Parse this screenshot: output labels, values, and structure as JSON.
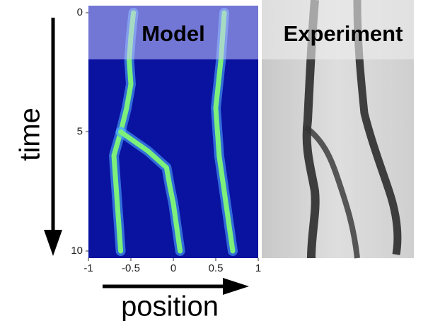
{
  "chart_data": {
    "type": "trajectory",
    "panel_labels": [
      "Model",
      "Experiment"
    ],
    "xlabel": "position",
    "ylabel": "time",
    "xlim": [
      -1,
      1
    ],
    "ylim": [
      0,
      10
    ],
    "xticks": [
      -1,
      -0.5,
      0,
      0.5,
      1
    ],
    "yticks": [
      0,
      5,
      10
    ],
    "color": "#7cf07a",
    "background": "#0a12a0",
    "series": [
      {
        "x": [
          -0.47,
          -0.5,
          -0.52,
          -0.5,
          -0.55,
          -0.62
        ],
        "y": [
          0,
          1,
          2,
          3,
          4,
          5
        ]
      },
      {
        "x": [
          -0.62,
          -0.7,
          -0.68,
          -0.66,
          -0.64,
          -0.62
        ],
        "y": [
          5,
          6,
          7,
          8,
          9,
          10
        ]
      },
      {
        "x": [
          -0.62,
          -0.3,
          -0.08,
          -0.04,
          0,
          0.04,
          0.08
        ],
        "y": [
          5,
          5.8,
          6.5,
          7.3,
          8,
          9,
          10
        ]
      },
      {
        "x": [
          0.6,
          0.58,
          0.56,
          0.5,
          0.52,
          0.54,
          0.58,
          0.62,
          0.66,
          0.7
        ],
        "y": [
          0,
          1,
          2,
          4,
          5,
          6,
          7,
          8,
          9,
          10
        ]
      }
    ]
  }
}
